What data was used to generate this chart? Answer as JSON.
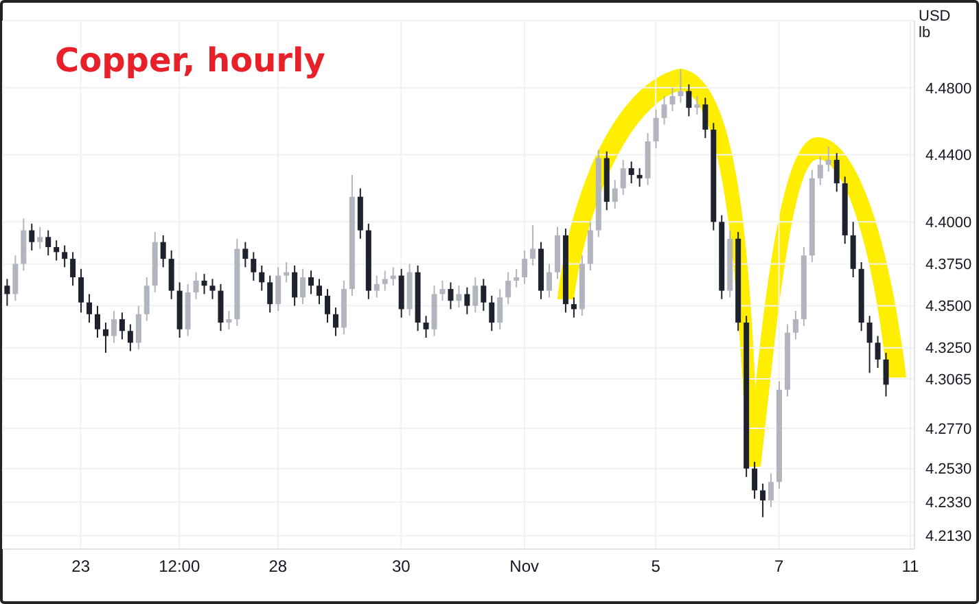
{
  "chart_data": {
    "type": "candlestick",
    "title": "Copper, hourly",
    "ylabel": "USD lb",
    "categories": [
      null,
      null,
      null,
      null,
      null,
      null,
      null,
      null,
      null,
      "23",
      null,
      null,
      null,
      null,
      null,
      null,
      null,
      null,
      null,
      null,
      null,
      "12:00",
      null,
      null,
      null,
      null,
      null,
      null,
      null,
      null,
      null,
      null,
      null,
      "28",
      null,
      null,
      null,
      null,
      null,
      null,
      null,
      null,
      null,
      null,
      null,
      null,
      null,
      null,
      "30",
      null,
      null,
      null,
      null,
      null,
      null,
      null,
      null,
      null,
      null,
      null,
      null,
      null,
      null,
      "Nov",
      null,
      null,
      null,
      null,
      null,
      null,
      null,
      null,
      null,
      null,
      null,
      null,
      null,
      null,
      null,
      "5",
      null,
      null,
      null,
      null,
      null,
      null,
      null,
      null,
      null,
      null,
      null,
      null,
      null,
      null,
      "7",
      null,
      null,
      null,
      null,
      null,
      null,
      null,
      null,
      null,
      null,
      null,
      null,
      null,
      null,
      null,
      "11"
    ],
    "ohlc": [
      [
        4.362,
        4.366,
        4.35,
        4.357
      ],
      [
        4.357,
        4.38,
        4.353,
        4.375
      ],
      [
        4.375,
        4.402,
        4.371,
        4.395
      ],
      [
        4.395,
        4.399,
        4.383,
        4.388
      ],
      [
        4.388,
        4.397,
        4.384,
        4.391
      ],
      [
        4.391,
        4.395,
        4.38,
        4.385
      ],
      [
        4.385,
        4.389,
        4.377,
        4.382
      ],
      [
        4.382,
        4.386,
        4.373,
        4.378
      ],
      [
        4.378,
        4.382,
        4.362,
        4.367
      ],
      [
        4.367,
        4.372,
        4.346,
        4.352
      ],
      [
        4.352,
        4.357,
        4.34,
        4.345
      ],
      [
        4.345,
        4.35,
        4.331,
        4.336
      ],
      [
        4.336,
        4.34,
        4.322,
        4.332
      ],
      [
        4.332,
        4.347,
        4.328,
        4.342
      ],
      [
        4.342,
        4.346,
        4.33,
        4.335
      ],
      [
        4.335,
        4.339,
        4.323,
        4.328
      ],
      [
        4.328,
        4.35,
        4.324,
        4.345
      ],
      [
        4.345,
        4.367,
        4.341,
        4.362
      ],
      [
        4.362,
        4.394,
        4.358,
        4.388
      ],
      [
        4.388,
        4.392,
        4.373,
        4.378
      ],
      [
        4.378,
        4.383,
        4.354,
        4.359
      ],
      [
        4.359,
        4.364,
        4.331,
        4.336
      ],
      [
        4.336,
        4.363,
        4.332,
        4.358
      ],
      [
        4.358,
        4.37,
        4.354,
        4.365
      ],
      [
        4.365,
        4.369,
        4.357,
        4.362
      ],
      [
        4.362,
        4.366,
        4.354,
        4.359
      ],
      [
        4.359,
        4.363,
        4.335,
        4.34
      ],
      [
        4.34,
        4.347,
        4.336,
        4.342
      ],
      [
        4.342,
        4.39,
        4.338,
        4.384
      ],
      [
        4.384,
        4.388,
        4.373,
        4.378
      ],
      [
        4.378,
        4.382,
        4.365,
        4.37
      ],
      [
        4.37,
        4.374,
        4.359,
        4.364
      ],
      [
        4.364,
        4.368,
        4.346,
        4.351
      ],
      [
        4.351,
        4.373,
        4.347,
        4.368
      ],
      [
        4.368,
        4.376,
        4.364,
        4.37
      ],
      [
        4.37,
        4.374,
        4.35,
        4.355
      ],
      [
        4.355,
        4.372,
        4.351,
        4.367
      ],
      [
        4.367,
        4.371,
        4.357,
        4.362
      ],
      [
        4.362,
        4.366,
        4.351,
        4.356
      ],
      [
        4.356,
        4.36,
        4.34,
        4.345
      ],
      [
        4.345,
        4.349,
        4.332,
        4.337
      ],
      [
        4.337,
        4.365,
        4.333,
        4.36
      ],
      [
        4.36,
        4.428,
        4.356,
        4.415
      ],
      [
        4.415,
        4.42,
        4.39,
        4.395
      ],
      [
        4.395,
        4.399,
        4.354,
        4.359
      ],
      [
        4.359,
        4.368,
        4.355,
        4.363
      ],
      [
        4.363,
        4.371,
        4.359,
        4.366
      ],
      [
        4.366,
        4.373,
        4.362,
        4.368
      ],
      [
        4.368,
        4.372,
        4.343,
        4.348
      ],
      [
        4.348,
        4.375,
        4.344,
        4.37
      ],
      [
        4.37,
        4.374,
        4.335,
        4.34
      ],
      [
        4.34,
        4.344,
        4.331,
        4.336
      ],
      [
        4.336,
        4.362,
        4.332,
        4.357
      ],
      [
        4.357,
        4.365,
        4.353,
        4.36
      ],
      [
        4.36,
        4.364,
        4.348,
        4.353
      ],
      [
        4.353,
        4.362,
        4.349,
        4.357
      ],
      [
        4.357,
        4.361,
        4.345,
        4.35
      ],
      [
        4.35,
        4.367,
        4.346,
        4.362
      ],
      [
        4.362,
        4.366,
        4.347,
        4.352
      ],
      [
        4.352,
        4.356,
        4.335,
        4.34
      ],
      [
        4.34,
        4.36,
        4.336,
        4.355
      ],
      [
        4.355,
        4.37,
        4.351,
        4.365
      ],
      [
        4.365,
        4.372,
        4.361,
        4.367
      ],
      [
        4.367,
        4.383,
        4.363,
        4.378
      ],
      [
        4.378,
        4.398,
        4.374,
        4.384
      ],
      [
        4.384,
        4.388,
        4.354,
        4.359
      ],
      [
        4.359,
        4.375,
        4.355,
        4.37
      ],
      [
        4.37,
        4.397,
        4.366,
        4.392
      ],
      [
        4.392,
        4.396,
        4.346,
        4.351
      ],
      [
        4.351,
        4.355,
        4.343,
        4.348
      ],
      [
        4.348,
        4.38,
        4.344,
        4.375
      ],
      [
        4.375,
        4.4,
        4.371,
        4.395
      ],
      [
        4.395,
        4.443,
        4.391,
        4.438
      ],
      [
        4.438,
        4.442,
        4.407,
        4.412
      ],
      [
        4.412,
        4.425,
        4.408,
        4.42
      ],
      [
        4.42,
        4.437,
        4.416,
        4.432
      ],
      [
        4.432,
        4.436,
        4.423,
        4.428
      ],
      [
        4.428,
        4.432,
        4.421,
        4.426
      ],
      [
        4.426,
        4.453,
        4.422,
        4.448
      ],
      [
        4.448,
        4.467,
        4.444,
        4.462
      ],
      [
        4.462,
        4.475,
        4.458,
        4.47
      ],
      [
        4.47,
        4.48,
        4.466,
        4.475
      ],
      [
        4.475,
        4.491,
        4.471,
        4.478
      ],
      [
        4.478,
        4.482,
        4.463,
        4.468
      ],
      [
        4.468,
        4.475,
        4.464,
        4.47
      ],
      [
        4.47,
        4.474,
        4.45,
        4.455
      ],
      [
        4.455,
        4.459,
        4.395,
        4.4
      ],
      [
        4.4,
        4.404,
        4.354,
        4.359
      ],
      [
        4.359,
        4.395,
        4.355,
        4.39
      ],
      [
        4.39,
        4.394,
        4.335,
        4.34
      ],
      [
        4.34,
        4.344,
        4.248,
        4.253
      ],
      [
        4.253,
        4.257,
        4.235,
        4.24
      ],
      [
        4.24,
        4.244,
        4.224,
        4.234
      ],
      [
        4.234,
        4.25,
        4.23,
        4.245
      ],
      [
        4.245,
        4.305,
        4.241,
        4.3
      ],
      [
        4.3,
        4.339,
        4.296,
        4.334
      ],
      [
        4.334,
        4.347,
        4.33,
        4.342
      ],
      [
        4.342,
        4.385,
        4.338,
        4.38
      ],
      [
        4.38,
        4.431,
        4.376,
        4.426
      ],
      [
        4.426,
        4.439,
        4.422,
        4.434
      ],
      [
        4.434,
        4.445,
        4.43,
        4.437
      ],
      [
        4.437,
        4.441,
        4.418,
        4.423
      ],
      [
        4.423,
        4.427,
        4.387,
        4.392
      ],
      [
        4.392,
        4.4,
        4.367,
        4.372
      ],
      [
        4.372,
        4.376,
        4.335,
        4.34
      ],
      [
        4.34,
        4.344,
        4.31,
        4.328
      ],
      [
        4.328,
        4.332,
        4.313,
        4.318
      ],
      [
        4.318,
        4.322,
        4.296,
        4.303
      ],
      null,
      null,
      null
    ],
    "colors": [
      "#1e222d",
      "#b2b5be",
      "#b2b5be",
      "#1e222d",
      "#b2b5be",
      "#1e222d",
      "#1e222d",
      "#1e222d",
      "#1e222d",
      "#1e222d",
      "#1e222d",
      "#1e222d",
      "#1e222d",
      "#b2b5be",
      "#1e222d",
      "#1e222d",
      "#b2b5be",
      "#b2b5be",
      "#b2b5be",
      "#1e222d",
      "#1e222d",
      "#1e222d",
      "#b2b5be",
      "#b2b5be",
      "#1e222d",
      "#1e222d",
      "#1e222d",
      "#b2b5be",
      "#b2b5be",
      "#1e222d",
      "#1e222d",
      "#1e222d",
      "#1e222d",
      "#b2b5be",
      "#b2b5be",
      "#1e222d",
      "#b2b5be",
      "#1e222d",
      "#1e222d",
      "#1e222d",
      "#1e222d",
      "#b2b5be",
      "#b2b5be",
      "#1e222d",
      "#1e222d",
      "#b2b5be",
      "#b2b5be",
      "#b2b5be",
      "#1e222d",
      "#b2b5be",
      "#1e222d",
      "#1e222d",
      "#b2b5be",
      "#b2b5be",
      "#1e222d",
      "#b2b5be",
      "#1e222d",
      "#b2b5be",
      "#1e222d",
      "#1e222d",
      "#b2b5be",
      "#b2b5be",
      "#b2b5be",
      "#b2b5be",
      "#b2b5be",
      "#1e222d",
      "#b2b5be",
      "#b2b5be",
      "#1e222d",
      "#1e222d",
      "#b2b5be",
      "#b2b5be",
      "#b2b5be",
      "#1e222d",
      "#b2b5be",
      "#b2b5be",
      "#1e222d",
      "#1e222d",
      "#b2b5be",
      "#b2b5be",
      "#b2b5be",
      "#b2b5be",
      "#b2b5be",
      "#1e222d",
      "#b2b5be",
      "#1e222d",
      "#1e222d",
      "#1e222d",
      "#b2b5be",
      "#1e222d",
      "#1e222d",
      "#1e222d",
      "#1e222d",
      "#b2b5be",
      "#b2b5be",
      "#b2b5be",
      "#b2b5be",
      "#b2b5be",
      "#b2b5be",
      "#b2b5be",
      "#b2b5be",
      "#1e222d",
      "#1e222d",
      "#1e222d",
      "#1e222d",
      "#1e222d",
      "#1e222d",
      "#1e222d",
      null,
      null,
      null
    ],
    "ylim": [
      4.205,
      4.52
    ],
    "yticks": [
      {
        "value": 4.213,
        "label": "4.2130"
      },
      {
        "value": 4.233,
        "label": "4.2330"
      },
      {
        "value": 4.253,
        "label": "4.2530"
      },
      {
        "value": 4.277,
        "label": "4.2770"
      },
      {
        "value": 4.3065,
        "label": "4.3065"
      },
      {
        "value": 4.325,
        "label": "4.3250"
      },
      {
        "value": 4.35,
        "label": "4.3500"
      },
      {
        "value": 4.375,
        "label": "4.3750"
      },
      {
        "value": 4.4,
        "label": "4.4000"
      },
      {
        "value": 4.44,
        "label": "4.4400"
      },
      {
        "value": 4.48,
        "label": "4.4800"
      }
    ],
    "grid": true
  }
}
